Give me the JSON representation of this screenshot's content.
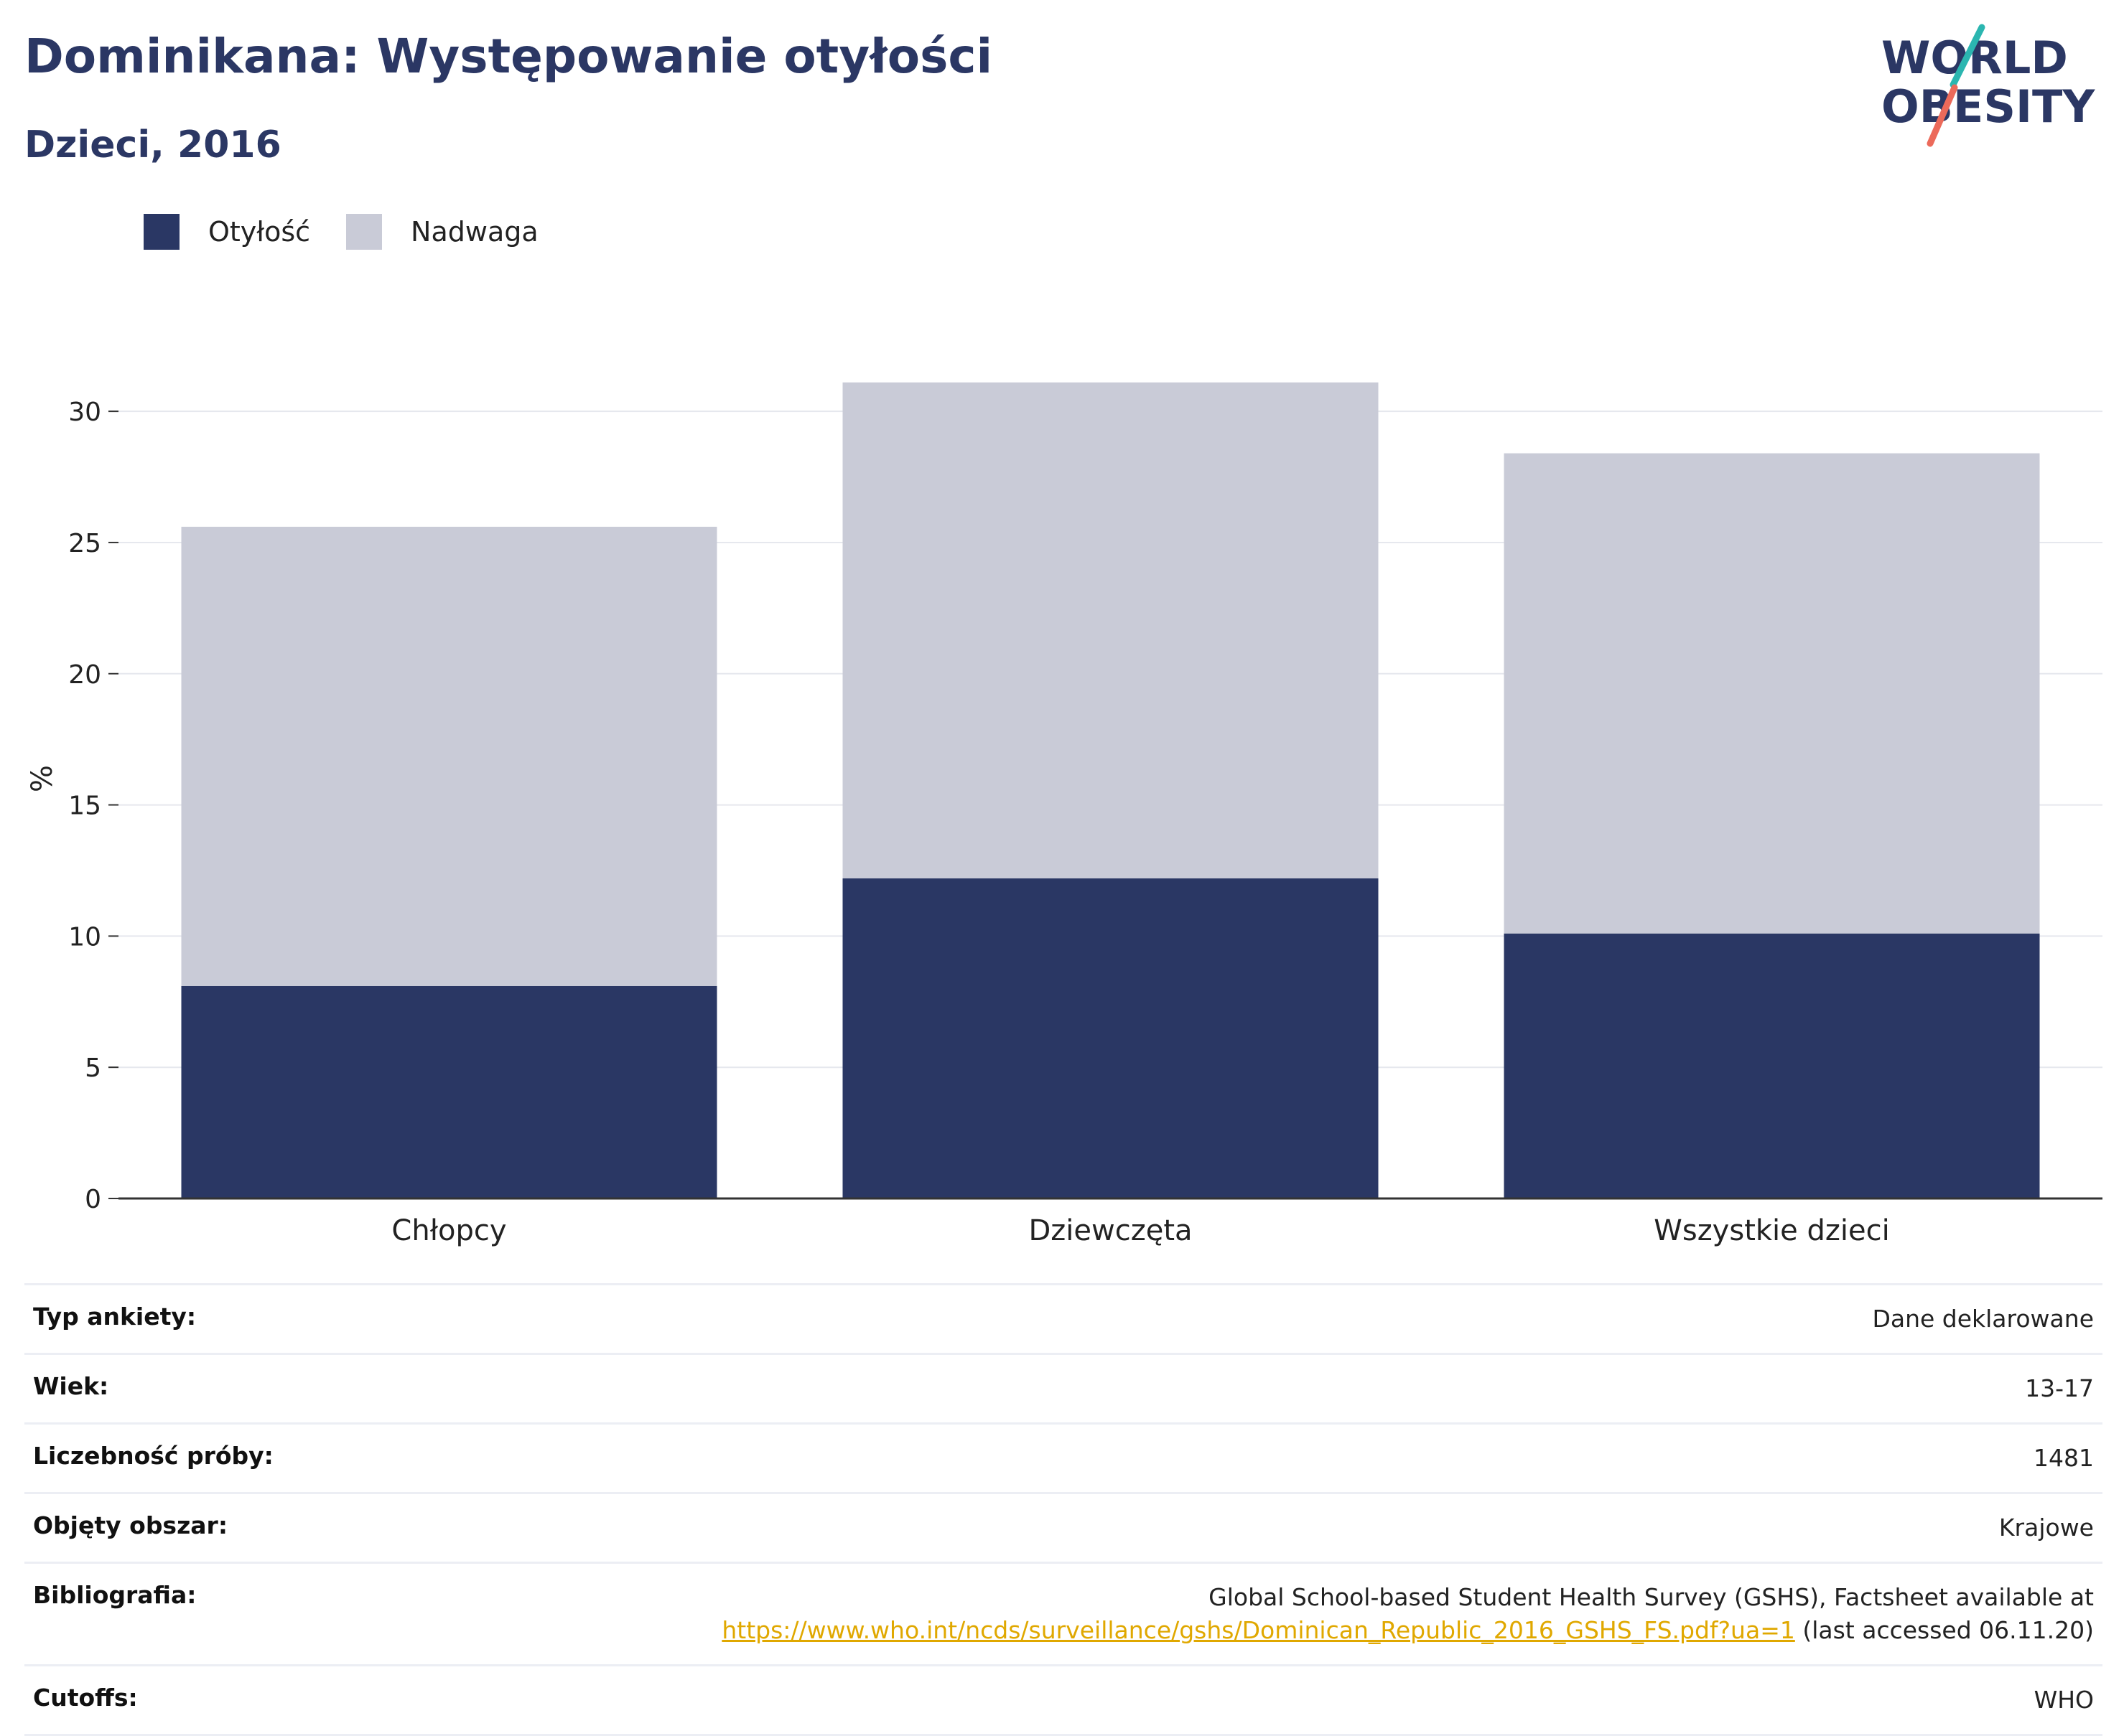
{
  "header": {
    "title": "Dominikana: Występowanie otyłości",
    "subtitle": "Dzieci, 2016",
    "logo_line1": "WORLD",
    "logo_line2": "OBESITY"
  },
  "legend": {
    "items": [
      {
        "label": "Otyłość",
        "color": "#2a3764"
      },
      {
        "label": "Nadwaga",
        "color": "#c9cbd7"
      }
    ]
  },
  "chart_data": {
    "type": "bar",
    "stacked": true,
    "categories": [
      "Chłopcy",
      "Dziewczęta",
      "Wszystkie dzieci"
    ],
    "series": [
      {
        "name": "Otyłość",
        "values": [
          8.1,
          12.2,
          10.1
        ],
        "color": "#2a3764"
      },
      {
        "name": "Nadwaga",
        "values": [
          17.5,
          18.9,
          18.3
        ],
        "color": "#c9cbd7"
      }
    ],
    "ylabel": "%",
    "xlabel": "",
    "ylim": [
      0,
      32
    ],
    "yticks": [
      0,
      5,
      10,
      15,
      20,
      25,
      30
    ],
    "grid": true,
    "legend_position": "top-left"
  },
  "info": {
    "rows": [
      {
        "key": "Typ ankiety:",
        "value": "Dane deklarowane"
      },
      {
        "key": "Wiek:",
        "value": "13-17"
      },
      {
        "key": "Liczebność próby:",
        "value": "1481"
      },
      {
        "key": "Objęty obszar:",
        "value": "Krajowe"
      }
    ],
    "bibliography": {
      "key": "Bibliografia:",
      "line1": "Global School-based Student Health Survey (GSHS), Factsheet available at",
      "link": "https://www.who.int/ncds/surveillance/gshs/Dominican_Republic_2016_GSHS_FS.pdf?ua=1",
      "after": " (last accessed 06.11.20)"
    },
    "cutoffs": {
      "key": "Cutoffs:",
      "value": "WHO"
    }
  }
}
